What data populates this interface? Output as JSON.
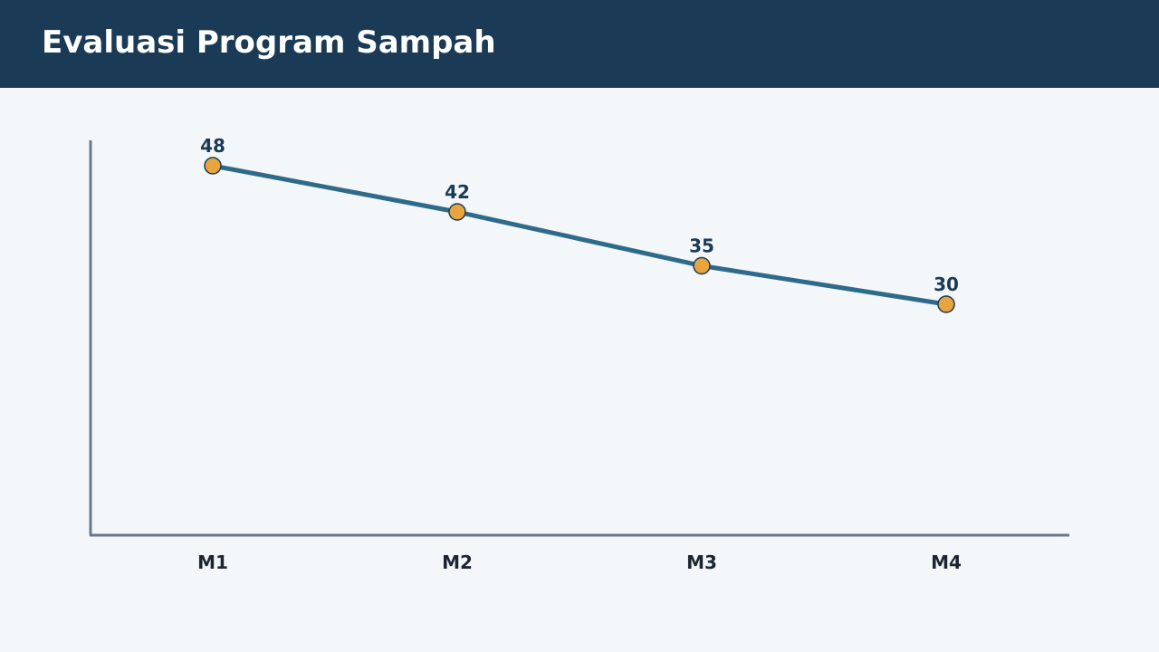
{
  "header": {
    "title": "Evaluasi Program Sampah"
  },
  "colors": {
    "header_bg": "#1a3a56",
    "page_bg": "#f3f7fa",
    "line": "#2e6a8a",
    "marker_fill": "#e8a53f",
    "marker_stroke": "#1a3a56",
    "axis": "#6b7785",
    "value_label": "#1a3a56",
    "category_label": "#1c2530"
  },
  "chart_data": {
    "type": "line",
    "categories": [
      "M1",
      "M2",
      "M3",
      "M4"
    ],
    "values": [
      48,
      42,
      35,
      30
    ],
    "show_data_labels": true,
    "title": "",
    "xlabel": "",
    "ylabel": "",
    "grid": false,
    "legend": "none"
  }
}
